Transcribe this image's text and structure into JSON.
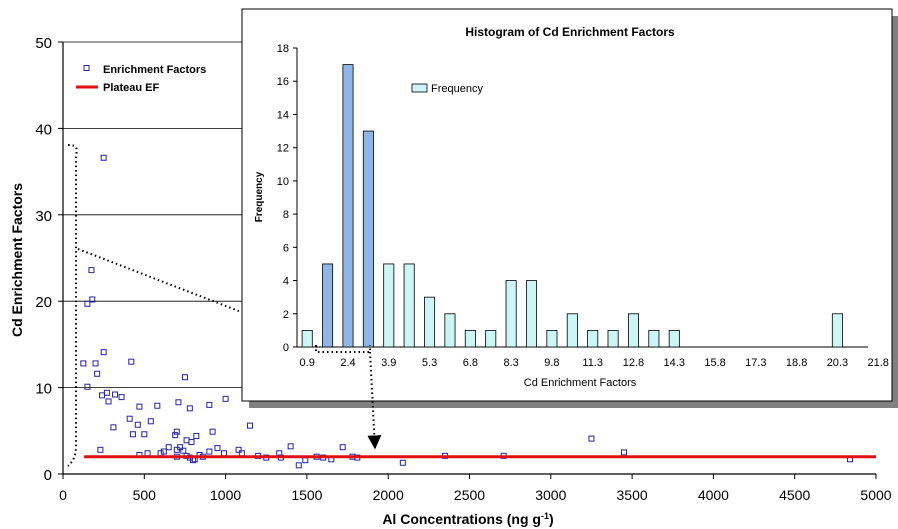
{
  "chart_data": [
    {
      "type": "scatter",
      "title": "",
      "xlabel": "Al Concentrations (ng g",
      "xlabel_sup": "-1",
      "xlabel_close": ")",
      "ylabel": "Cd Enrichment Factors",
      "xlim": [
        0,
        5000
      ],
      "ylim": [
        0,
        50
      ],
      "x_ticks": [
        "0",
        "500",
        "1000",
        "1500",
        "2000",
        "2500",
        "3000",
        "3500",
        "4000",
        "4500",
        "5000"
      ],
      "x_tick_values": [
        0,
        500,
        1000,
        1500,
        2000,
        2500,
        3000,
        3500,
        4000,
        4500,
        5000
      ],
      "y_ticks": [
        "0",
        "10",
        "20",
        "30",
        "40",
        "50"
      ],
      "y_tick_values": [
        0,
        10,
        20,
        30,
        40,
        50
      ],
      "grid": "horizontal",
      "legend_position": "top-left",
      "legend": [
        {
          "label": "Enrichment Factors",
          "marker": "open-square",
          "color": "#2323a8"
        },
        {
          "label": "Plateau EF",
          "marker": "line",
          "color": "#e01010"
        }
      ],
      "series": [
        {
          "name": "Enrichment Factors",
          "color": "#2323a8",
          "points": [
            [
              250,
              36.6
            ],
            [
              175,
              23.6
            ],
            [
              180,
              20.2
            ],
            [
              150,
              19.7
            ],
            [
              125,
              12.8
            ],
            [
              200,
              12.8
            ],
            [
              250,
              14.1
            ],
            [
              210,
              11.6
            ],
            [
              420,
              13.0
            ],
            [
              750,
              11.2
            ],
            [
              150,
              10.1
            ],
            [
              270,
              9.4
            ],
            [
              240,
              9.1
            ],
            [
              320,
              9.2
            ],
            [
              280,
              8.4
            ],
            [
              360,
              8.9
            ],
            [
              470,
              7.8
            ],
            [
              580,
              7.9
            ],
            [
              710,
              8.3
            ],
            [
              780,
              7.6
            ],
            [
              900,
              8.0
            ],
            [
              1000,
              8.7
            ],
            [
              410,
              6.4
            ],
            [
              460,
              5.7
            ],
            [
              310,
              5.4
            ],
            [
              540,
              6.1
            ],
            [
              1150,
              5.6
            ],
            [
              430,
              4.6
            ],
            [
              500,
              4.6
            ],
            [
              690,
              4.5
            ],
            [
              700,
              4.9
            ],
            [
              760,
              3.9
            ],
            [
              790,
              3.7
            ],
            [
              820,
              4.4
            ],
            [
              920,
              4.9
            ],
            [
              230,
              2.8
            ],
            [
              470,
              2.2
            ],
            [
              520,
              2.4
            ],
            [
              600,
              2.4
            ],
            [
              620,
              2.6
            ],
            [
              650,
              3.1
            ],
            [
              700,
              2.8
            ],
            [
              720,
              3.1
            ],
            [
              740,
              2.7
            ],
            [
              760,
              2.1
            ],
            [
              780,
              1.9
            ],
            [
              800,
              1.6
            ],
            [
              810,
              1.7
            ],
            [
              840,
              2.2
            ],
            [
              860,
              2.0
            ],
            [
              900,
              2.6
            ],
            [
              950,
              3.0
            ],
            [
              990,
              2.4
            ],
            [
              1080,
              2.8
            ],
            [
              1100,
              2.4
            ],
            [
              1200,
              2.1
            ],
            [
              1250,
              1.9
            ],
            [
              1330,
              2.4
            ],
            [
              1340,
              1.9
            ],
            [
              1400,
              3.2
            ],
            [
              1450,
              1.0
            ],
            [
              1490,
              1.6
            ],
            [
              1560,
              2.0
            ],
            [
              1600,
              1.9
            ],
            [
              1650,
              1.7
            ],
            [
              1720,
              3.1
            ],
            [
              1780,
              2.0
            ],
            [
              1810,
              1.9
            ],
            [
              2090,
              1.3
            ],
            [
              2350,
              2.1
            ],
            [
              2710,
              2.1
            ],
            [
              3250,
              4.1
            ],
            [
              3450,
              2.5
            ],
            [
              4840,
              1.7
            ],
            [
              700,
              2.0
            ]
          ]
        },
        {
          "name": "Plateau EF",
          "color": "#e01010",
          "x": [
            130,
            5000
          ],
          "y": [
            2.0,
            2.0
          ]
        }
      ]
    },
    {
      "type": "bar",
      "title": "Histogram of Cd Enrichment Factors",
      "xlabel": "Cd Enrichment Factors",
      "ylabel": "Frequency",
      "ylim": [
        0,
        18
      ],
      "y_ticks": [
        "0",
        "2",
        "4",
        "6",
        "8",
        "10",
        "12",
        "14",
        "16",
        "18"
      ],
      "y_tick_values": [
        0,
        2,
        4,
        6,
        8,
        10,
        12,
        14,
        16,
        18
      ],
      "x_tick_labels": [
        "0.9",
        "2.4",
        "3.9",
        "5.3",
        "6.8",
        "8.3",
        "9.8",
        "11.3",
        "12.8",
        "14.3",
        "15.8",
        "17.3",
        "18.8",
        "20.3",
        "21.8"
      ],
      "legend": [
        {
          "label": "Frequency",
          "color": "#ccf5f5"
        }
      ],
      "legend_position": "top-left",
      "highlighted_color": "#8eb6e6",
      "base_color": "#ccf5f5",
      "series": [
        {
          "name": "Frequency",
          "values": [
            1,
            5,
            17,
            13,
            5,
            5,
            3,
            2,
            1,
            1,
            4,
            4,
            1,
            2,
            1,
            1,
            2,
            1,
            1,
            0,
            0,
            0,
            0,
            0,
            0,
            0,
            2,
            0
          ],
          "highlighted": [
            1,
            2,
            3
          ]
        }
      ]
    }
  ]
}
